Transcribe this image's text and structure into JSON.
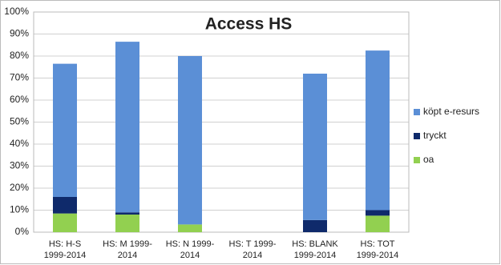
{
  "chart_data": {
    "type": "stacked_bar",
    "title": "Access HS",
    "categories": [
      "HS: H-S 1999-2014",
      "HS: M 1999-2014",
      "HS: N 1999-2014",
      "HS: T 1999-2014",
      "HS: BLANK 1999-2014",
      "HS: TOT 1999-2014"
    ],
    "series": [
      {
        "name": "oa",
        "color": "#92d050",
        "values": [
          8.5,
          8,
          3.5,
          0,
          0,
          7.5
        ]
      },
      {
        "name": "tryckt",
        "color": "#0f2a6b",
        "values": [
          7.5,
          1,
          0,
          0,
          5.5,
          2.5
        ]
      },
      {
        "name": "köpt e-resurs",
        "color": "#5b8fd6",
        "values": [
          60.5,
          77.5,
          76.5,
          0,
          66.5,
          72.5
        ]
      }
    ],
    "ylim": [
      0,
      100
    ],
    "yticks": [
      {
        "value": 0,
        "label": "0%"
      },
      {
        "value": 10,
        "label": "10%"
      },
      {
        "value": 20,
        "label": "20%"
      },
      {
        "value": 30,
        "label": "30%"
      },
      {
        "value": 40,
        "label": "40%"
      },
      {
        "value": 50,
        "label": "50%"
      },
      {
        "value": 60,
        "label": "60%"
      },
      {
        "value": 70,
        "label": "70%"
      },
      {
        "value": 80,
        "label": "80%"
      },
      {
        "value": 90,
        "label": "90%"
      },
      {
        "value": 100,
        "label": "100%"
      }
    ],
    "grid": true
  }
}
